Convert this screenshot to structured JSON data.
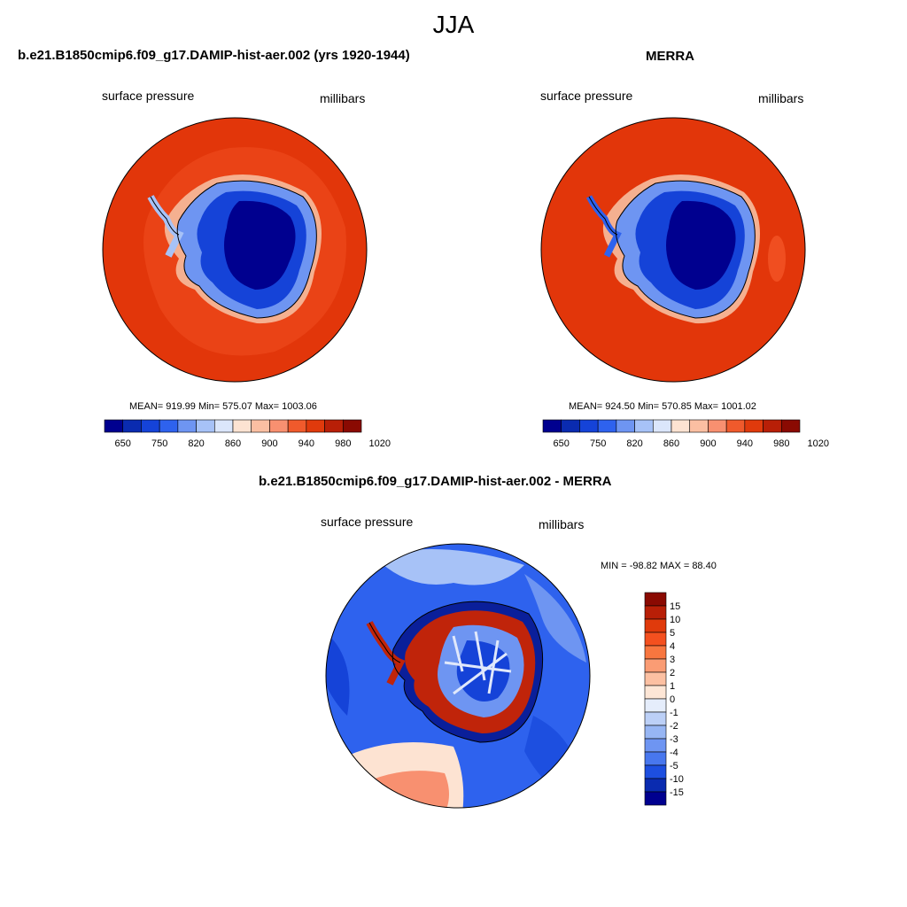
{
  "main_title": "JJA",
  "panels": [
    {
      "title": "b.e21.B1850cmip6.f09_g17.DAMIP-hist-aer.002 (yrs 1920-1944)",
      "left_label": "surface pressure",
      "right_label": "millibars",
      "stats": "MEAN= 919.99  Min= 575.07  Max= 1003.06"
    },
    {
      "title": "MERRA",
      "left_label": "surface pressure",
      "right_label": "millibars",
      "stats": "MEAN= 924.50  Min= 570.85  Max= 1001.02"
    },
    {
      "title": "b.e21.B1850cmip6.f09_g17.DAMIP-hist-aer.002 - MERRA",
      "left_label": "surface pressure",
      "right_label": "millibars",
      "stats": "MIN = -98.82 MAX =  88.40"
    }
  ],
  "colorbar_field": {
    "tick_labels": [
      "650",
      "750",
      "820",
      "860",
      "900",
      "940",
      "980",
      "1020"
    ],
    "colors": [
      "#00008f",
      "#0a2bb0",
      "#1543d8",
      "#2e62ee",
      "#6e95f2",
      "#a7c2f7",
      "#dbe6fb",
      "#fde3d2",
      "#fbbfa2",
      "#f89070",
      "#f05a2c",
      "#e03a0c",
      "#b81f07",
      "#8a0a02"
    ]
  },
  "colorbar_diff": {
    "tick_labels": [
      "15",
      "10",
      "5",
      "4",
      "3",
      "2",
      "1",
      "0",
      "-1",
      "-2",
      "-3",
      "-4",
      "-5",
      "-10",
      "-15"
    ],
    "colors": [
      "#8a0a02",
      "#b81f07",
      "#e03a0c",
      "#f4501f",
      "#f8763f",
      "#fa9c74",
      "#fcc0a2",
      "#fde6d6",
      "#e5edfb",
      "#bcd0f7",
      "#97b6f4",
      "#6e95f2",
      "#4877ee",
      "#1d4fe0",
      "#0a2bb0",
      "#00008f"
    ]
  },
  "colors": {
    "ocean_field": "#e2360a",
    "ocean_field_inner": "#f04e20",
    "ice_deep": "#00008f",
    "ice_mid": "#1543d8",
    "ice_light": "#6e95f2",
    "diff_ocean": "#2e62ee",
    "diff_ocean_light": "#a7c2f7",
    "diff_positive": "#f89070",
    "diff_strong_pos": "#c0240a",
    "diff_strong_neg": "#0a1f9a"
  }
}
